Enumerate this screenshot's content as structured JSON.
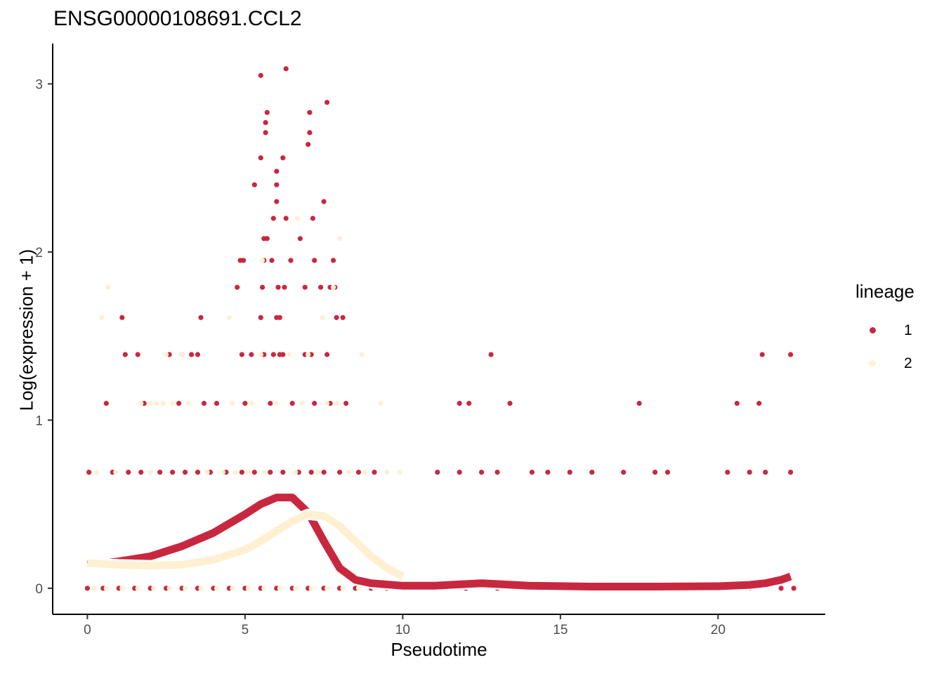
{
  "chart_data": {
    "type": "scatter",
    "title": "ENSG00000108691.CCL2",
    "xlabel": "Pseudotime",
    "ylabel": "Log(expression + 1)",
    "xlim": [
      -1.1,
      23.4
    ],
    "ylim": [
      -0.155,
      3.24
    ],
    "x_ticks": [
      0,
      5,
      10,
      15,
      20
    ],
    "y_ticks": [
      0,
      1,
      2,
      3
    ],
    "grid": false,
    "legend": {
      "title": "lineage",
      "position": "right",
      "entries": [
        {
          "label": "1",
          "color": "#C8283F"
        },
        {
          "label": "2",
          "color": "#FFF0D2"
        }
      ]
    },
    "series": [
      {
        "name": "1",
        "color": "#C8283F",
        "points": [
          [
            5.5,
            3.05
          ],
          [
            6.3,
            3.09
          ],
          [
            5.7,
            2.83
          ],
          [
            5.65,
            2.77
          ],
          [
            5.65,
            2.71
          ],
          [
            7.05,
            2.83
          ],
          [
            7.05,
            2.71
          ],
          [
            7.0,
            2.64
          ],
          [
            7.6,
            2.89
          ],
          [
            5.5,
            2.56
          ],
          [
            6.2,
            2.56
          ],
          [
            6.0,
            2.48
          ],
          [
            6.0,
            2.4
          ],
          [
            5.3,
            2.4
          ],
          [
            6.0,
            2.3
          ],
          [
            5.9,
            2.2
          ],
          [
            6.3,
            2.2
          ],
          [
            7.15,
            2.2
          ],
          [
            7.5,
            2.3
          ],
          [
            5.6,
            2.08
          ],
          [
            5.7,
            2.08
          ],
          [
            6.75,
            2.08
          ],
          [
            5.6,
            1.95
          ],
          [
            4.85,
            1.95
          ],
          [
            4.95,
            1.95
          ],
          [
            5.85,
            1.95
          ],
          [
            6.45,
            1.95
          ],
          [
            7.2,
            1.95
          ],
          [
            7.8,
            1.95
          ],
          [
            4.75,
            1.79
          ],
          [
            5.55,
            1.79
          ],
          [
            6.05,
            1.79
          ],
          [
            6.25,
            1.79
          ],
          [
            6.9,
            1.79
          ],
          [
            7.4,
            1.79
          ],
          [
            7.7,
            1.79
          ],
          [
            7.85,
            1.79
          ],
          [
            1.1,
            1.61
          ],
          [
            3.6,
            1.61
          ],
          [
            5.5,
            1.61
          ],
          [
            6.0,
            1.61
          ],
          [
            6.1,
            1.61
          ],
          [
            7.9,
            1.61
          ],
          [
            8.1,
            1.61
          ],
          [
            1.2,
            1.39
          ],
          [
            1.6,
            1.39
          ],
          [
            2.6,
            1.39
          ],
          [
            3.0,
            1.39
          ],
          [
            3.3,
            1.39
          ],
          [
            3.5,
            1.39
          ],
          [
            4.9,
            1.39
          ],
          [
            5.2,
            1.39
          ],
          [
            5.6,
            1.39
          ],
          [
            5.9,
            1.39
          ],
          [
            6.1,
            1.39
          ],
          [
            6.2,
            1.39
          ],
          [
            6.9,
            1.39
          ],
          [
            7.1,
            1.39
          ],
          [
            7.6,
            1.39
          ],
          [
            12.8,
            1.39
          ],
          [
            21.4,
            1.39
          ],
          [
            22.3,
            1.39
          ],
          [
            0.6,
            1.1
          ],
          [
            1.8,
            1.1
          ],
          [
            2.9,
            1.1
          ],
          [
            3.7,
            1.1
          ],
          [
            4.1,
            1.1
          ],
          [
            5.0,
            1.1
          ],
          [
            5.8,
            1.1
          ],
          [
            6.5,
            1.1
          ],
          [
            7.2,
            1.1
          ],
          [
            7.7,
            1.1
          ],
          [
            8.2,
            1.1
          ],
          [
            11.8,
            1.1
          ],
          [
            12.1,
            1.1
          ],
          [
            13.4,
            1.1
          ],
          [
            17.5,
            1.1
          ],
          [
            20.6,
            1.1
          ],
          [
            21.3,
            1.1
          ],
          [
            0.05,
            0.69
          ],
          [
            0.8,
            0.69
          ],
          [
            1.3,
            0.69
          ],
          [
            1.7,
            0.69
          ],
          [
            2.3,
            0.69
          ],
          [
            2.7,
            0.69
          ],
          [
            3.1,
            0.69
          ],
          [
            3.5,
            0.69
          ],
          [
            3.9,
            0.69
          ],
          [
            4.4,
            0.69
          ],
          [
            4.9,
            0.69
          ],
          [
            5.3,
            0.69
          ],
          [
            5.8,
            0.69
          ],
          [
            6.2,
            0.69
          ],
          [
            6.7,
            0.69
          ],
          [
            7.1,
            0.69
          ],
          [
            7.5,
            0.69
          ],
          [
            8.0,
            0.69
          ],
          [
            8.6,
            0.69
          ],
          [
            9.1,
            0.69
          ],
          [
            11.1,
            0.69
          ],
          [
            11.8,
            0.69
          ],
          [
            12.5,
            0.69
          ],
          [
            13.0,
            0.69
          ],
          [
            14.1,
            0.69
          ],
          [
            14.6,
            0.69
          ],
          [
            15.3,
            0.69
          ],
          [
            16.0,
            0.69
          ],
          [
            17.0,
            0.69
          ],
          [
            18.0,
            0.69
          ],
          [
            18.4,
            0.69
          ],
          [
            20.3,
            0.69
          ],
          [
            21.0,
            0.69
          ],
          [
            21.5,
            0.69
          ],
          [
            22.3,
            0.69
          ],
          [
            0.0,
            0.0
          ],
          [
            0.5,
            0.0
          ],
          [
            1.0,
            0.0
          ],
          [
            1.5,
            0.0
          ],
          [
            2.0,
            0.0
          ],
          [
            2.5,
            0.0
          ],
          [
            3.0,
            0.0
          ],
          [
            3.5,
            0.0
          ],
          [
            4.0,
            0.0
          ],
          [
            4.5,
            0.0
          ],
          [
            5.0,
            0.0
          ],
          [
            5.5,
            0.0
          ],
          [
            6.0,
            0.0
          ],
          [
            6.5,
            0.0
          ],
          [
            7.0,
            0.0
          ],
          [
            7.5,
            0.0
          ],
          [
            8.0,
            0.0
          ],
          [
            8.5,
            0.0
          ],
          [
            9.0,
            0.0
          ],
          [
            9.5,
            0.0
          ],
          [
            10.0,
            0.0
          ],
          [
            11.0,
            0.0
          ],
          [
            12.0,
            0.0
          ],
          [
            13.0,
            0.0
          ],
          [
            14.0,
            0.0
          ],
          [
            15.0,
            0.0
          ],
          [
            16.0,
            0.0
          ],
          [
            17.0,
            0.0
          ],
          [
            18.0,
            0.0
          ],
          [
            19.0,
            0.0
          ],
          [
            20.0,
            0.0
          ],
          [
            21.0,
            0.0
          ],
          [
            22.0,
            0.0
          ],
          [
            22.4,
            0.0
          ]
        ],
        "curve": [
          [
            0,
            0.14
          ],
          [
            1,
            0.16
          ],
          [
            2,
            0.19
          ],
          [
            3,
            0.25
          ],
          [
            4,
            0.33
          ],
          [
            5,
            0.44
          ],
          [
            5.5,
            0.5
          ],
          [
            6,
            0.54
          ],
          [
            6.5,
            0.54
          ],
          [
            7,
            0.45
          ],
          [
            7.5,
            0.28
          ],
          [
            8,
            0.12
          ],
          [
            8.5,
            0.05
          ],
          [
            9,
            0.03
          ],
          [
            10,
            0.015
          ],
          [
            11,
            0.015
          ],
          [
            12,
            0.025
          ],
          [
            12.5,
            0.03
          ],
          [
            13,
            0.025
          ],
          [
            14,
            0.015
          ],
          [
            16,
            0.01
          ],
          [
            18,
            0.01
          ],
          [
            20,
            0.012
          ],
          [
            21,
            0.02
          ],
          [
            21.5,
            0.03
          ],
          [
            22,
            0.05
          ],
          [
            22.3,
            0.07
          ]
        ]
      },
      {
        "name": "2",
        "color": "#FFF0D2",
        "points": [
          [
            0.45,
            1.61
          ],
          [
            0.65,
            1.79
          ],
          [
            4.5,
            1.61
          ],
          [
            5.55,
            1.95
          ],
          [
            6.65,
            2.2
          ],
          [
            7.45,
            1.61
          ],
          [
            7.8,
            1.79
          ],
          [
            8.0,
            2.08
          ],
          [
            2.5,
            1.39
          ],
          [
            3.0,
            1.39
          ],
          [
            5.5,
            1.39
          ],
          [
            6.4,
            1.39
          ],
          [
            7.0,
            1.39
          ],
          [
            8.7,
            1.39
          ],
          [
            1.7,
            1.1
          ],
          [
            2.0,
            1.1
          ],
          [
            2.2,
            1.1
          ],
          [
            2.4,
            1.1
          ],
          [
            2.7,
            1.1
          ],
          [
            3.2,
            1.1
          ],
          [
            4.6,
            1.1
          ],
          [
            5.2,
            1.1
          ],
          [
            6.0,
            1.1
          ],
          [
            6.8,
            1.1
          ],
          [
            7.6,
            1.1
          ],
          [
            7.9,
            1.1
          ],
          [
            9.3,
            1.1
          ],
          [
            0.3,
            0.69
          ],
          [
            0.9,
            0.69
          ],
          [
            2.0,
            0.69
          ],
          [
            3.8,
            0.69
          ],
          [
            4.3,
            0.69
          ],
          [
            4.7,
            0.69
          ],
          [
            5.1,
            0.69
          ],
          [
            5.6,
            0.69
          ],
          [
            6.6,
            0.69
          ],
          [
            7.3,
            0.69
          ],
          [
            8.3,
            0.69
          ],
          [
            8.8,
            0.69
          ],
          [
            9.5,
            0.69
          ],
          [
            9.9,
            0.69
          ],
          [
            0.2,
            0.0
          ],
          [
            0.6,
            0.0
          ],
          [
            1.1,
            0.0
          ],
          [
            1.6,
            0.0
          ],
          [
            2.1,
            0.0
          ],
          [
            2.6,
            0.0
          ],
          [
            3.1,
            0.0
          ],
          [
            3.6,
            0.0
          ],
          [
            4.1,
            0.0
          ],
          [
            4.6,
            0.0
          ],
          [
            5.1,
            0.0
          ],
          [
            5.6,
            0.0
          ],
          [
            6.1,
            0.0
          ],
          [
            6.6,
            0.0
          ],
          [
            7.1,
            0.0
          ],
          [
            7.6,
            0.0
          ],
          [
            8.1,
            0.0
          ],
          [
            8.6,
            0.0
          ],
          [
            9.1,
            0.0
          ],
          [
            9.6,
            0.0
          ],
          [
            10.0,
            0.0
          ]
        ],
        "curve": [
          [
            0,
            0.15
          ],
          [
            1,
            0.14
          ],
          [
            2,
            0.135
          ],
          [
            3,
            0.14
          ],
          [
            4,
            0.17
          ],
          [
            5,
            0.23
          ],
          [
            5.5,
            0.28
          ],
          [
            6,
            0.34
          ],
          [
            6.5,
            0.4
          ],
          [
            7,
            0.44
          ],
          [
            7.5,
            0.43
          ],
          [
            8,
            0.37
          ],
          [
            8.5,
            0.28
          ],
          [
            9,
            0.19
          ],
          [
            9.5,
            0.12
          ],
          [
            10,
            0.07
          ]
        ]
      }
    ]
  }
}
